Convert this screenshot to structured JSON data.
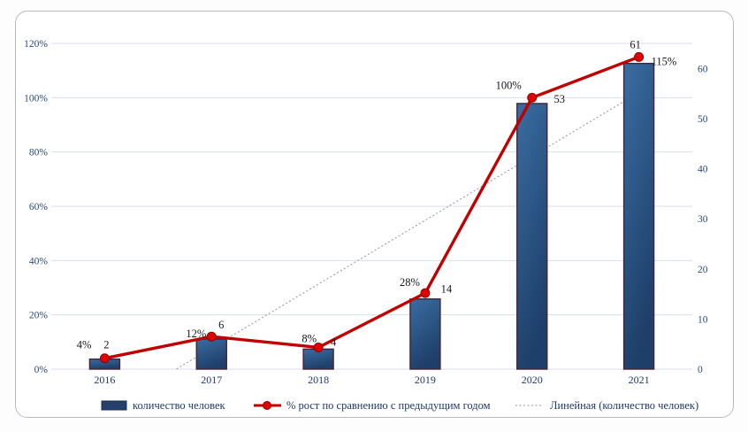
{
  "chart_data": {
    "type": "combo (bar + line + linear trendline)",
    "title": "",
    "categories": [
      "2016",
      "2017",
      "2018",
      "2019",
      "2020",
      "2021"
    ],
    "series": [
      {
        "name": "количество человек",
        "type": "bar",
        "axis": "right",
        "values": [
          2,
          6,
          4,
          14,
          53,
          61
        ],
        "data_labels": [
          "2",
          "6",
          "4",
          "14",
          "53",
          "61"
        ],
        "fill_top": "#3a6da2",
        "fill_bottom": "#1e3f69",
        "border_color": "#44243a"
      },
      {
        "name": "% рост по сравнению с предыдущим годом",
        "type": "line",
        "axis": "left",
        "values": [
          4,
          12,
          8,
          28,
          100,
          115
        ],
        "data_labels": [
          "4%",
          "12%",
          "8%",
          "28%",
          "100%",
          "115%"
        ],
        "line_color": "#c00000",
        "marker_fill": "#e00000",
        "marker_border": "#8f0000"
      },
      {
        "name": "Линейная (количество человек)",
        "type": "linear-trendline",
        "axis": "right",
        "based_on_series": "количество человек",
        "line_color": "#8f959d"
      }
    ],
    "left_axis": {
      "min": 0,
      "max": 120,
      "step": 20,
      "ticks": [
        "0%",
        "20%",
        "40%",
        "60%",
        "80%",
        "100%",
        "120%"
      ]
    },
    "right_axis": {
      "min": 0,
      "max": 65,
      "step": 10,
      "ticks": [
        "0",
        "10",
        "20",
        "30",
        "40",
        "50",
        "60"
      ]
    },
    "grid": true,
    "gridline_color": "#d9dee7",
    "legend_position": "bottom",
    "legend": [
      "количество человек",
      "% рост по сравнению с предыдущим годом",
      "Линейная (количество человек)"
    ]
  }
}
